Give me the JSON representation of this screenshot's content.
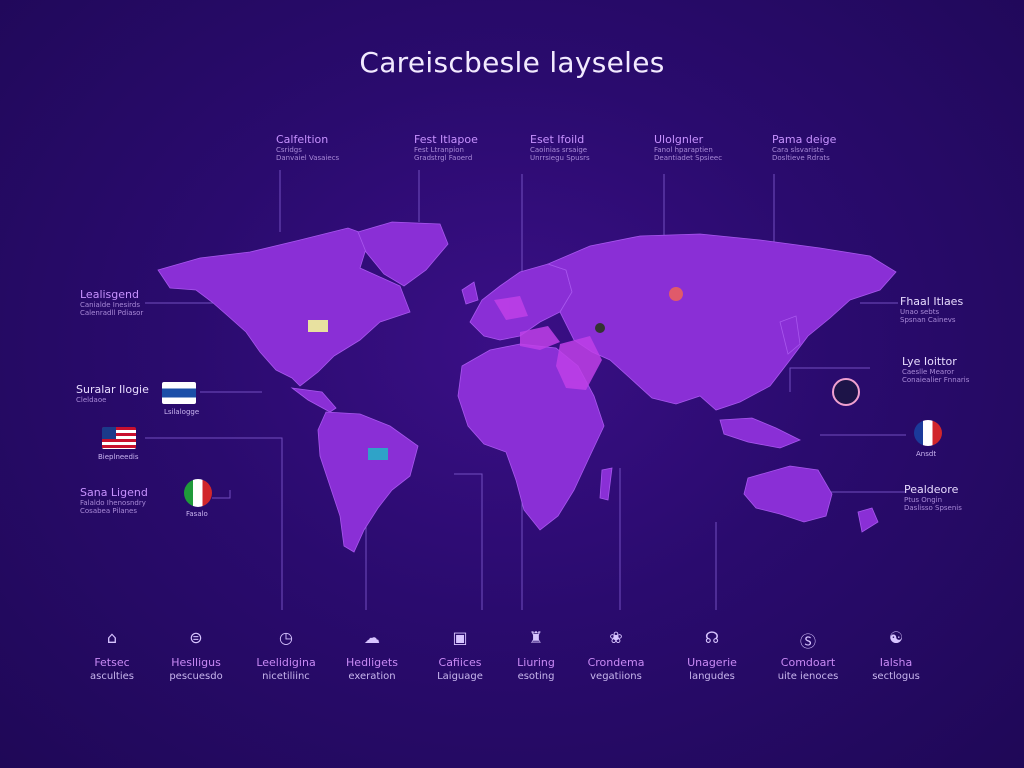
{
  "title": "Careiscbesle layseles",
  "top_labels": [
    {
      "heading": "Calfeltion",
      "lines": [
        "Csridgs",
        "Danvaiel Vasaiecs"
      ]
    },
    {
      "heading": "Fest Itlapoe",
      "lines": [
        "Fest Ltranpion",
        "Gradstrgl Faoerd"
      ]
    },
    {
      "heading": "Eset Ifoild",
      "lines": [
        "Caoinias srsaige",
        "Unrrsiegu Spusrs"
      ]
    },
    {
      "heading": "Ulolgnler",
      "lines": [
        "Fanol hparaptien",
        "Deantiadet Spsieec"
      ]
    },
    {
      "heading": "Pama deige",
      "lines": [
        "Cara slsvariste",
        "Dosltieve Rdrats"
      ]
    }
  ],
  "left_labels": [
    {
      "heading": "Lealisgend",
      "lines": [
        "Canialde Inesirds",
        "Calenradll Pdiasor"
      ]
    },
    {
      "heading": "Suralar Ilogie",
      "lines": [
        "Cleldaoe"
      ]
    },
    {
      "heading": "Sana Ligend",
      "lines": [
        "Falaldo Ihenosndry",
        "Cosabea Pilanes"
      ]
    }
  ],
  "right_labels": [
    {
      "heading": "Fhaal Itlaes",
      "lines": [
        "Unao sebts",
        "Spsnan Cainevs"
      ]
    },
    {
      "heading": "Lye Ioittor",
      "lines": [
        "Caeslle Mearor",
        "Conaiealier Fnnaris"
      ]
    },
    {
      "heading": "Pealdeore",
      "lines": [
        "Ptus Ongin",
        "Daslisso Spsenis"
      ]
    }
  ],
  "flags": [
    {
      "caption": "Lsilalogge"
    },
    {
      "caption": "Bieplneedis"
    },
    {
      "caption": "Fasalo"
    },
    {
      "caption": "Ansdt"
    }
  ],
  "bottom_items": [
    {
      "icon": "⌂",
      "line1": "Fetsec",
      "line2": "asculties"
    },
    {
      "icon": "⊜",
      "line1": "Heslligus",
      "line2": "pescuesdo"
    },
    {
      "icon": "◷",
      "line1": "Leelidigina",
      "line2": "nicetiliinc"
    },
    {
      "icon": "☁",
      "line1": "Hedligets",
      "line2": "exeration"
    },
    {
      "icon": "▣",
      "line1": "Cafiices",
      "line2": "Laiguage"
    },
    {
      "icon": "♜",
      "line1": "Liuring",
      "line2": "esoting"
    },
    {
      "icon": "❀",
      "line1": "Crondema",
      "line2": "vegatiions"
    },
    {
      "icon": "☊",
      "line1": "Unagerie",
      "line2": "langudes"
    },
    {
      "icon": "Ⓢ",
      "line1": "Comdoart",
      "line2": "uite ienoces"
    },
    {
      "icon": "☯",
      "line1": "Ialsha",
      "line2": "sectlogus"
    }
  ],
  "colors": {
    "background": "#2a0b6e",
    "land": "#8a2fd6",
    "land_highlight": "#c040e8",
    "connector": "#7a56c8"
  }
}
